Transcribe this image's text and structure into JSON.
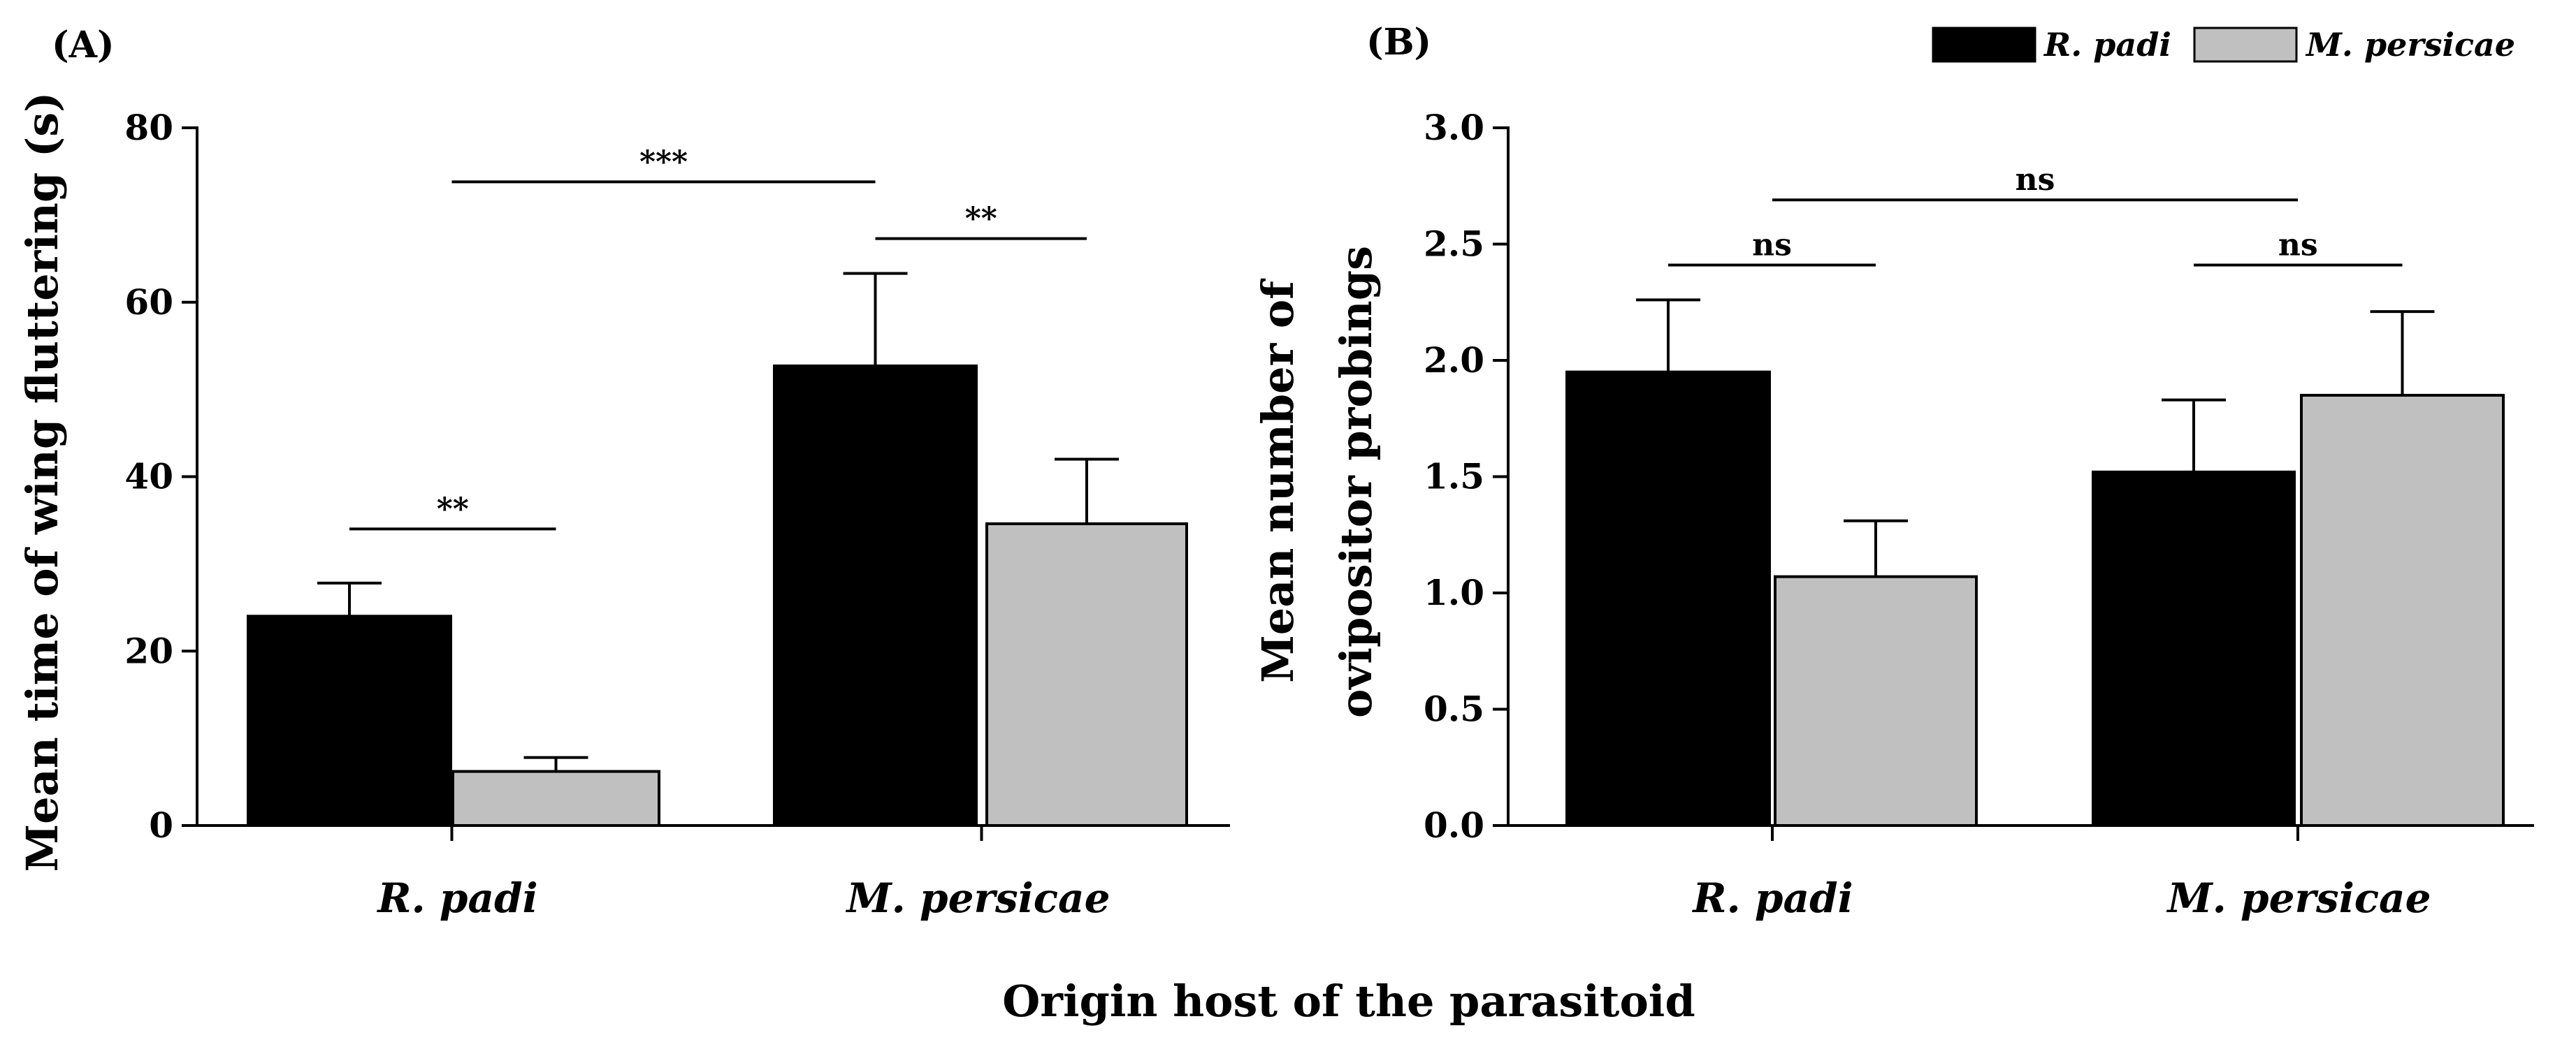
{
  "x_axis_title": "Origin host of the parasitoid",
  "legend": [
    {
      "label": "R. padi",
      "color": "#000000"
    },
    {
      "label": "M. persicae",
      "color": "#c0c0c0"
    }
  ],
  "chart_data": [
    {
      "panel": "(A)",
      "type": "bar",
      "ylabel": "Mean time of wing fluttering (s)",
      "ylim": [
        0,
        80
      ],
      "yticks": [
        "0",
        "20",
        "40",
        "60",
        "80"
      ],
      "categories": [
        "R. padi",
        "M. persicae"
      ],
      "series": [
        {
          "name": "R. padi",
          "values": [
            24.0,
            52.7
          ],
          "errors": [
            3.8,
            10.6
          ]
        },
        {
          "name": "M. persicae",
          "values": [
            6.2,
            34.6
          ],
          "errors": [
            1.6,
            7.4
          ]
        }
      ],
      "annotations": [
        {
          "text": "**",
          "from": [
            0,
            0
          ],
          "to": [
            0,
            1
          ],
          "y": 34
        },
        {
          "text": "**",
          "from": [
            1,
            0
          ],
          "to": [
            1,
            1
          ],
          "y": 67.3
        },
        {
          "text": "***",
          "from": [
            0,
            0.5
          ],
          "to": [
            1,
            0
          ],
          "y": 73.8
        }
      ]
    },
    {
      "panel": "(B)",
      "type": "bar",
      "ylabel_lines": [
        "Mean number of",
        "ovipositor probings"
      ],
      "ylim": [
        0,
        3.0
      ],
      "yticks": [
        "0.0",
        "0.5",
        "1.0",
        "1.5",
        "2.0",
        "2.5",
        "3.0"
      ],
      "categories": [
        "R. padi",
        "M. persicae"
      ],
      "series": [
        {
          "name": "R. padi",
          "values": [
            1.95,
            1.52
          ],
          "errors": [
            0.31,
            0.31
          ]
        },
        {
          "name": "M. persicae",
          "values": [
            1.07,
            1.85
          ],
          "errors": [
            0.24,
            0.36
          ]
        }
      ],
      "annotations": [
        {
          "text": "ns",
          "from": [
            0,
            0
          ],
          "to": [
            0,
            1
          ],
          "y": 2.41
        },
        {
          "text": "ns",
          "from": [
            1,
            0
          ],
          "to": [
            1,
            1
          ],
          "y": 2.41
        },
        {
          "text": "ns",
          "from": [
            0,
            0.5
          ],
          "to": [
            1,
            0.5
          ],
          "y": 2.69
        }
      ]
    }
  ]
}
